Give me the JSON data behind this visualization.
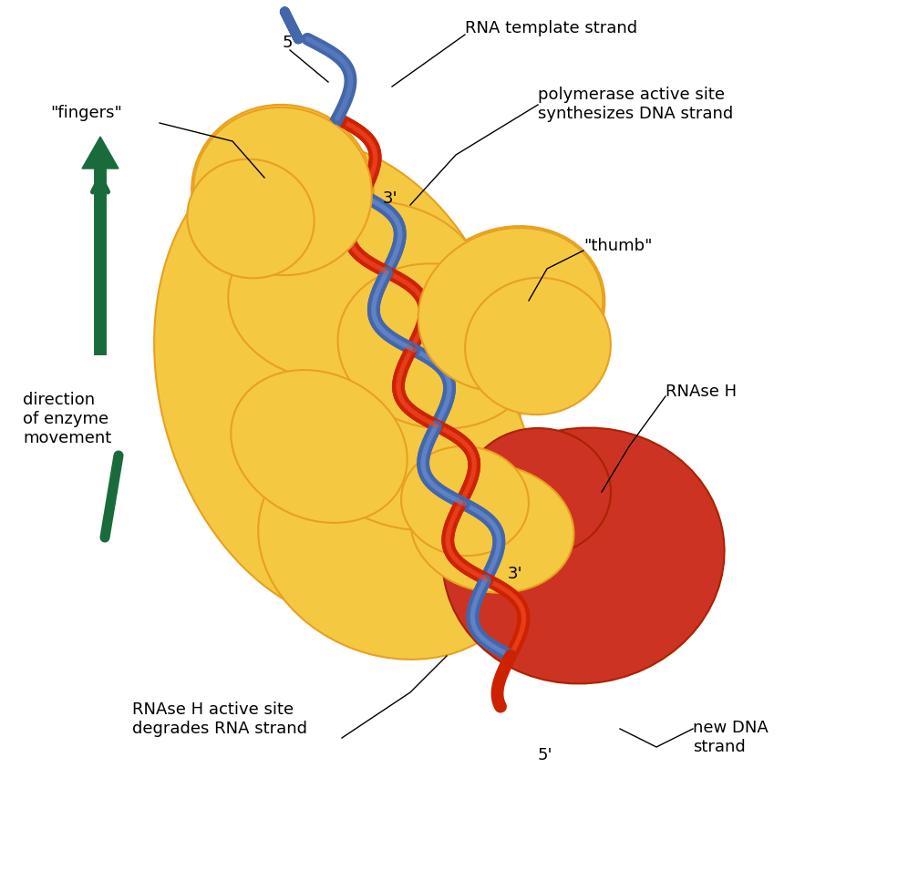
{
  "background_color": "#ffffff",
  "labels": {
    "rna_template": "RNA template strand",
    "polymerase": "polymerase active site\nsynthesizes DNA strand",
    "fingers": "\"fingers\"",
    "thumb": "\"thumb\"",
    "rnase_h": "RNAse H",
    "direction": "direction\nof enzyme\nmovement",
    "rnase_h_active": "RNAse H active site\ndegrades RNA strand",
    "new_dna": "new DNA\nstrand",
    "5prime_top": "5'",
    "3prime_top": "3'",
    "3prime_bottom": "3'",
    "5prime_bottom": "5'"
  },
  "colors": {
    "yellow_enzyme": "#F5C842",
    "yellow_dark": "#E8A020",
    "red_domain": "#CC3322",
    "red_strand": "#CC2200",
    "blue_strand": "#4466AA",
    "dark_blue_strand": "#334477",
    "green_arrow": "#1A6B3C",
    "text_color": "#000000",
    "background": "#ffffff"
  },
  "font_size": 13,
  "arrow_font_size": 12
}
